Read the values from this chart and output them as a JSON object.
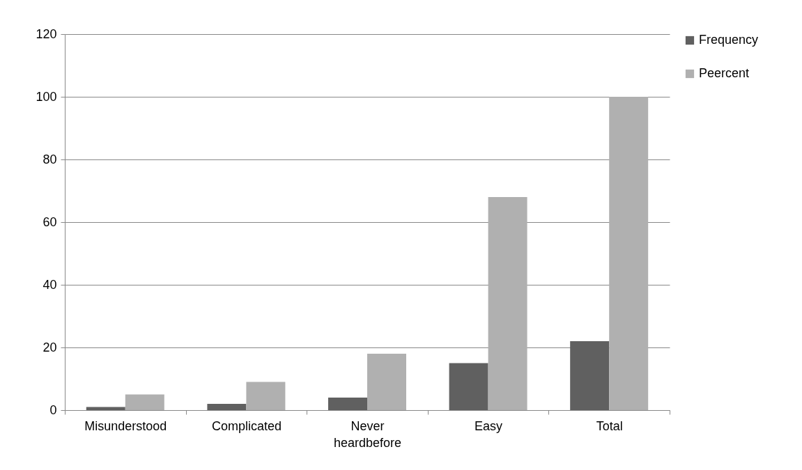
{
  "chart_data": {
    "type": "bar",
    "categories": [
      "Misunderstood",
      "Complicated",
      "Never heardbefore",
      "Easy",
      "Total"
    ],
    "series": [
      {
        "name": "Frequency",
        "color": "#606060",
        "values": [
          1,
          2,
          4,
          15,
          22
        ]
      },
      {
        "name": "Peercent",
        "color": "#b0b0b0",
        "values": [
          5,
          9,
          18,
          68,
          100
        ]
      }
    ],
    "ylim": [
      0,
      120
    ],
    "yticks": [
      0,
      20,
      40,
      60,
      80,
      100,
      120
    ],
    "grid": "y",
    "legend": "right"
  }
}
